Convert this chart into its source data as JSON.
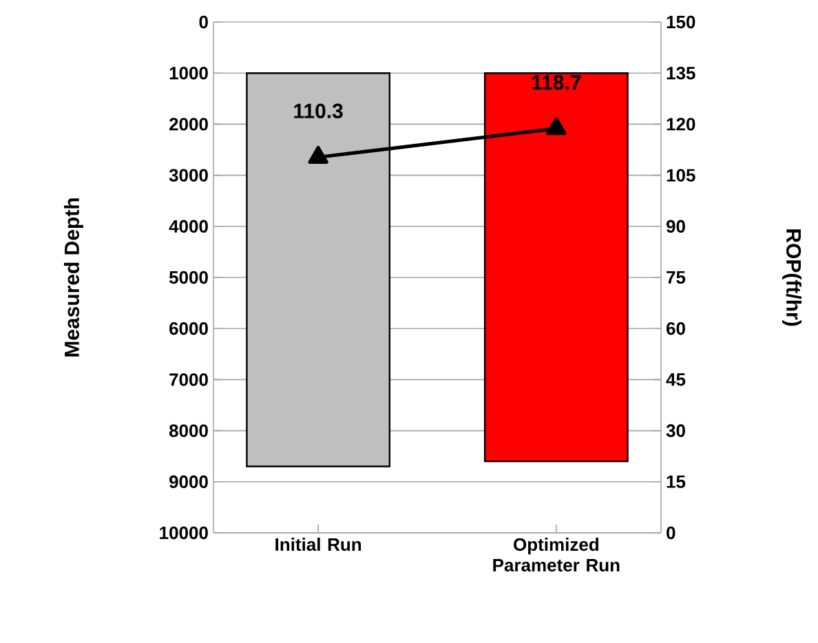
{
  "chart_data": {
    "type": "bar",
    "ylabel": "Measured Depth",
    "y2label": "ROP(ft/hr)",
    "categories": [
      "Initial Run",
      "Optimized Parameter Run"
    ],
    "series": [
      {
        "colors": [
          "#bfbfbf",
          "#ff0000"
        ],
        "values": [
          7700,
          7600
        ],
        "base": [
          1000,
          1000
        ]
      },
      {
        "type": "line",
        "axis": "y2",
        "color": "#000000",
        "marker": "triangle",
        "values": [
          110.3,
          118.7
        ],
        "value_labels": [
          "110.3",
          "118.7"
        ]
      }
    ],
    "ylim": [
      10000,
      0
    ],
    "yticks": [
      0,
      1000,
      2000,
      3000,
      4000,
      5000,
      6000,
      7000,
      8000,
      9000,
      10000
    ],
    "y2lim": [
      0,
      150
    ],
    "y2ticks": [
      0,
      15,
      30,
      45,
      60,
      75,
      90,
      105,
      120,
      135,
      150
    ],
    "grid": "y"
  }
}
